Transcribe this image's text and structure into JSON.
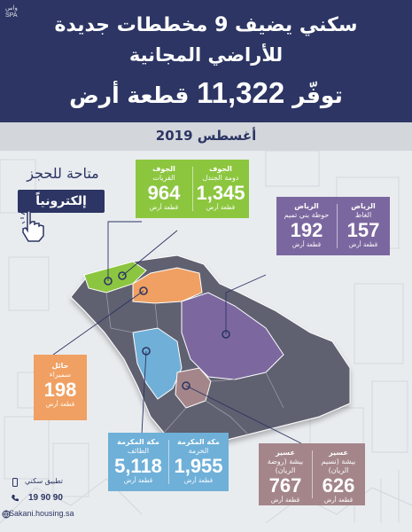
{
  "logo": {
    "line1": "واس",
    "line2": "SPA"
  },
  "header": {
    "title_line1": "سكني يضيف 9 مخططات جديدة",
    "title_line2": "للأراضي المجانية",
    "title_line3_prefix": "توفّر",
    "title_line3_number": "11,322",
    "title_line3_suffix": "قطعة أرض",
    "date": "أغسطس 2019"
  },
  "booking": {
    "line1": "متاحة للحجز",
    "button": "إلكترونياً"
  },
  "cards": {
    "jouf": {
      "color": "#8cc63f",
      "right": {
        "region": "الجوف",
        "place": "دومة الجندل",
        "number": "1,345",
        "unit": "قطعة أرض"
      },
      "left": {
        "region": "الجوف",
        "place": "القريات",
        "number": "964",
        "unit": "قطعة أرض"
      }
    },
    "riyadh": {
      "color": "#7b679f",
      "right": {
        "region": "الرياض",
        "place": "الغاط",
        "number": "157",
        "unit": "قطعة أرض"
      },
      "left": {
        "region": "الرياض",
        "place": "حوطة بني تميم",
        "number": "192",
        "unit": "قطعة أرض"
      }
    },
    "hail": {
      "color": "#f0a062",
      "single": {
        "region": "حائل",
        "place": "سميراء",
        "number": "198",
        "unit": "قطعة أرض"
      }
    },
    "makkah": {
      "color": "#6fb0d8",
      "right": {
        "region": "مكة المكرمة",
        "place": "الخرمة",
        "number": "1,955",
        "unit": "قطعة أرض"
      },
      "left": {
        "region": "مكة المكرمة",
        "place": "الطائف",
        "number": "5,118",
        "unit": "قطعة أرض"
      }
    },
    "asir": {
      "color": "#a4868a",
      "right": {
        "region": "عسير",
        "place": "بيشة (نسيم الريان)",
        "number": "626",
        "unit": "قطعة أرض"
      },
      "left": {
        "region": "عسير",
        "place": "بيشة (روضة الريان)",
        "number": "767",
        "unit": "قطعة أرض"
      }
    }
  },
  "footer": {
    "app_label": "تطبيق سكني",
    "phone": "19 90 90",
    "website": "Sakani.housing.sa",
    "icons": [
      "mobile-icon",
      "phone-icon",
      "globe-icon"
    ]
  },
  "colors": {
    "navy": "#2c3563",
    "band": "#d3d6db",
    "background": "#e9ecef",
    "map_gray": "#5f6170",
    "jouf_region": "#8cc63f",
    "hail_region": "#f0a062",
    "riyadh_region": "#7b679f",
    "makkah_region": "#6fb0d8",
    "asir_region": "#a4868a"
  }
}
